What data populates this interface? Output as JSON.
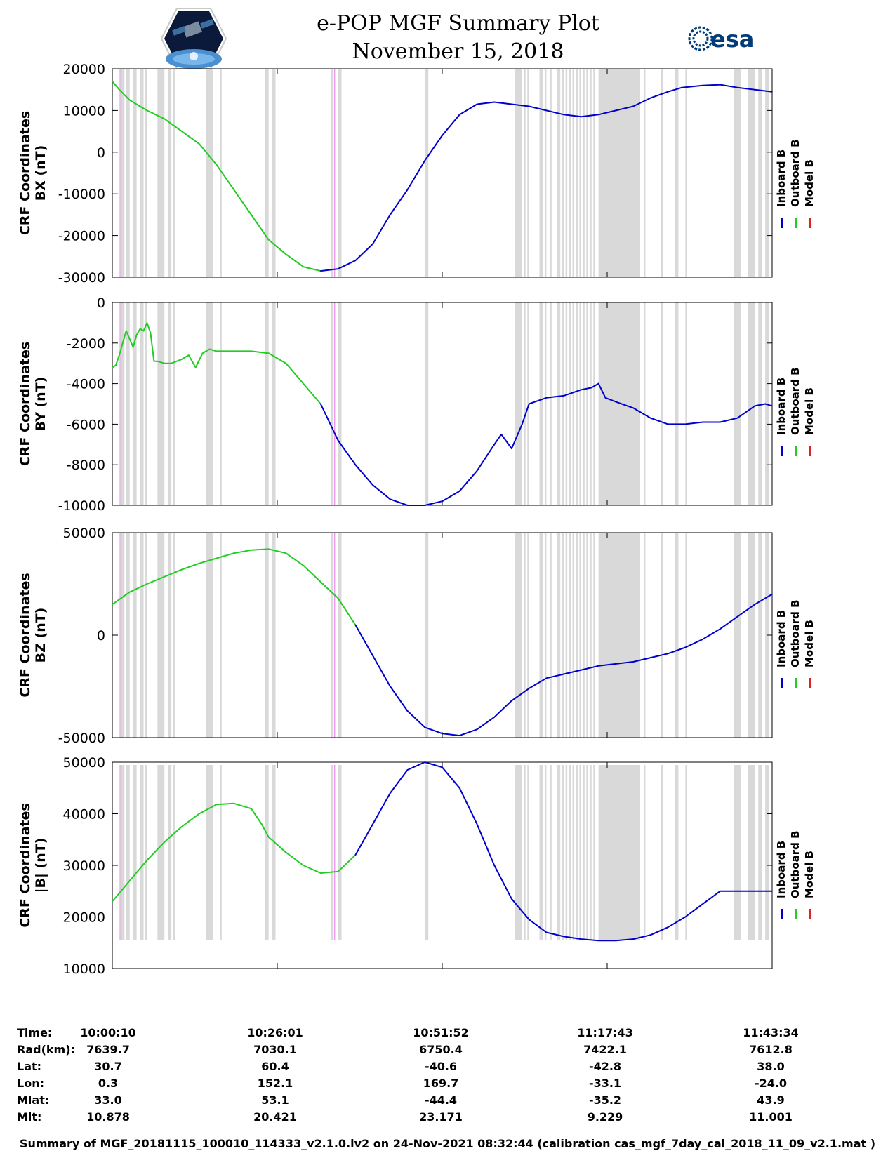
{
  "header": {
    "title": "e-POP MGF Summary Plot",
    "date": "November 15, 2018",
    "left_logo": "cassiope-mission-badge",
    "right_logo": "esa-logo",
    "right_logo_text": "esa"
  },
  "colors": {
    "inboard": "#0000cc",
    "outboard": "#22cc22",
    "model": "#dd2222",
    "gap_shading": "#d9d9d9",
    "marker": "#ee99ee"
  },
  "chart_data": [
    {
      "type": "line",
      "ylabel": [
        "CRF Coordinates",
        "BX (nT)"
      ],
      "ylim": [
        -30000,
        20000
      ],
      "yticks": [
        "20000",
        "10000",
        "0",
        "-10000",
        "-20000",
        "-30000"
      ],
      "legend": [
        "Inboard B",
        "Outboard B",
        "Model B"
      ],
      "legend_position": "right",
      "series": [
        {
          "name": "Outboard B",
          "x": [
            0,
            2,
            5,
            10,
            15,
            20,
            25,
            30,
            35,
            40,
            45,
            50,
            55,
            60
          ],
          "values": [
            17000,
            15000,
            12500,
            10000,
            8000,
            5000,
            2000,
            -3000,
            -9000,
            -15000,
            -21000,
            -24500,
            -27500,
            -28500
          ]
        },
        {
          "name": "Inboard B",
          "x": [
            60,
            65,
            70,
            75,
            80,
            85,
            90,
            95,
            100,
            105,
            110,
            115,
            120,
            125,
            130,
            135,
            140,
            145,
            150,
            155,
            160,
            164,
            170,
            175,
            180,
            185,
            190
          ],
          "values": [
            -28500,
            -28000,
            -26000,
            -22000,
            -15000,
            -9000,
            -2000,
            4000,
            9000,
            11500,
            12000,
            11500,
            11000,
            10000,
            9000,
            8500,
            9000,
            10000,
            11000,
            13000,
            14500,
            15500,
            16000,
            16200,
            15500,
            15000,
            14500
          ]
        }
      ]
    },
    {
      "type": "line",
      "ylabel": [
        "CRF Coordinates",
        "BY (nT)"
      ],
      "ylim": [
        -10000,
        0
      ],
      "yticks": [
        "0",
        "-2000",
        "-4000",
        "-6000",
        "-8000",
        "-10000"
      ],
      "legend": [
        "Inboard B",
        "Outboard B",
        "Model B"
      ],
      "legend_position": "right",
      "series": [
        {
          "name": "Outboard B",
          "x": [
            0,
            1,
            2,
            3,
            4,
            5,
            6,
            7,
            8,
            9,
            10,
            11,
            12,
            13,
            15,
            17,
            20,
            22,
            24,
            26,
            28,
            30,
            35,
            40,
            45,
            50,
            55,
            60
          ],
          "values": [
            -3200,
            -3100,
            -2600,
            -2000,
            -1400,
            -1800,
            -2200,
            -1600,
            -1300,
            -1400,
            -1000,
            -1500,
            -2900,
            -2900,
            -3000,
            -3000,
            -2800,
            -2600,
            -3200,
            -2500,
            -2300,
            -2400,
            -2400,
            -2400,
            -2500,
            -3000,
            -4000,
            -5000
          ]
        },
        {
          "name": "Inboard B",
          "x": [
            60,
            65,
            70,
            75,
            80,
            85,
            90,
            95,
            100,
            105,
            110,
            112,
            115,
            118,
            120,
            125,
            130,
            135,
            138,
            140,
            142,
            145,
            150,
            155,
            160,
            165,
            170,
            175,
            180,
            185,
            188,
            190
          ],
          "values": [
            -5000,
            -6800,
            -8000,
            -9000,
            -9700,
            -10000,
            -10000,
            -9800,
            -9300,
            -8300,
            -7000,
            -6500,
            -7200,
            -6000,
            -5000,
            -4700,
            -4600,
            -4300,
            -4200,
            -4000,
            -4700,
            -4900,
            -5200,
            -5700,
            -6000,
            -6000,
            -5900,
            -5900,
            -5700,
            -5100,
            -5000,
            -5100
          ]
        }
      ]
    },
    {
      "type": "line",
      "ylabel": [
        "CRF Coordinates",
        "BZ (nT)"
      ],
      "ylim": [
        -50000,
        50000
      ],
      "yticks": [
        "50000",
        "0",
        "-50000"
      ],
      "legend": [
        "Inboard B",
        "Outboard B",
        "Model B"
      ],
      "legend_position": "right",
      "series": [
        {
          "name": "Outboard B",
          "x": [
            0,
            5,
            10,
            15,
            20,
            25,
            30,
            35,
            40,
            45,
            50,
            55,
            60,
            65,
            70
          ],
          "values": [
            15000,
            21000,
            25000,
            28500,
            32000,
            35000,
            37500,
            40000,
            41500,
            42000,
            40000,
            34000,
            26000,
            18000,
            5000
          ]
        },
        {
          "name": "Inboard B",
          "x": [
            70,
            75,
            80,
            85,
            90,
            95,
            100,
            105,
            110,
            115,
            120,
            125,
            130,
            135,
            140,
            145,
            150,
            155,
            160,
            165,
            170,
            175,
            180,
            185,
            190
          ],
          "values": [
            5000,
            -10000,
            -25000,
            -37000,
            -45000,
            -48000,
            -49000,
            -46000,
            -40000,
            -32000,
            -26000,
            -21000,
            -19000,
            -17000,
            -15000,
            -14000,
            -13000,
            -11000,
            -9000,
            -6000,
            -2000,
            3000,
            9000,
            15000,
            20000
          ]
        }
      ]
    },
    {
      "type": "line",
      "ylabel": [
        "CRF Coordinates",
        "|B| (nT)"
      ],
      "ylim": [
        10000,
        50000
      ],
      "yticks": [
        "50000",
        "40000",
        "30000",
        "20000",
        "10000"
      ],
      "legend": [
        "Inboard B",
        "Outboard B",
        "Model B"
      ],
      "legend_position": "right",
      "series": [
        {
          "name": "Outboard B",
          "x": [
            0,
            5,
            10,
            15,
            20,
            25,
            30,
            35,
            40,
            43,
            45,
            50,
            55,
            60,
            65,
            70
          ],
          "values": [
            23000,
            27000,
            31000,
            34500,
            37500,
            40000,
            41800,
            42000,
            41000,
            38000,
            35500,
            32500,
            30000,
            28500,
            28800,
            32000
          ]
        },
        {
          "name": "Inboard B",
          "x": [
            70,
            75,
            80,
            85,
            90,
            95,
            100,
            105,
            110,
            115,
            120,
            125,
            130,
            135,
            140,
            145,
            150,
            155,
            160,
            165,
            170,
            175,
            180,
            185,
            190
          ],
          "values": [
            32000,
            38000,
            44000,
            48500,
            50000,
            49000,
            45000,
            38000,
            30000,
            23500,
            19500,
            17000,
            16200,
            15700,
            15400,
            15400,
            15700,
            16500,
            18000,
            20000,
            22500,
            25000,
            25000,
            25000,
            25000
          ]
        }
      ]
    }
  ],
  "gap_intervals": [
    [
      2.0,
      3.5
    ],
    [
      4,
      5
    ],
    [
      6,
      7
    ],
    [
      8,
      9
    ],
    [
      9.5,
      10
    ],
    [
      13,
      15
    ],
    [
      16,
      17
    ],
    [
      17.5,
      18
    ],
    [
      27,
      29
    ],
    [
      31,
      31.5
    ],
    [
      44,
      45
    ],
    [
      46,
      47
    ],
    [
      63,
      63.5
    ],
    [
      65,
      66
    ],
    [
      90,
      91
    ],
    [
      116,
      118
    ],
    [
      118.5,
      119
    ],
    [
      119.5,
      120
    ],
    [
      123,
      124
    ],
    [
      124.5,
      125
    ],
    [
      126,
      126.5
    ],
    [
      128,
      129
    ],
    [
      129.5,
      130
    ],
    [
      130.5,
      131
    ],
    [
      131.5,
      132
    ],
    [
      132.5,
      133
    ],
    [
      133.5,
      134
    ],
    [
      134.5,
      135
    ],
    [
      135.5,
      136
    ],
    [
      136.5,
      137
    ],
    [
      137.5,
      138
    ],
    [
      138.5,
      139
    ],
    [
      140,
      152
    ],
    [
      153,
      153.5
    ],
    [
      158,
      158.5
    ],
    [
      162,
      163
    ],
    [
      165,
      165.5
    ],
    [
      179,
      181
    ],
    [
      183,
      185
    ],
    [
      186,
      187
    ],
    [
      188,
      189
    ]
  ],
  "marker_lines": [
    2.5,
    64
  ],
  "info_table": {
    "labels": [
      "Time:",
      "Rad(km):",
      "Lat:",
      "Lon:",
      "Mlat:",
      "Mlt:"
    ],
    "columns": [
      [
        "10:00:10",
        "7639.7",
        "30.7",
        "0.3",
        "33.0",
        "10.878"
      ],
      [
        "10:26:01",
        "7030.1",
        "60.4",
        "152.1",
        "53.1",
        "20.421"
      ],
      [
        "10:51:52",
        "6750.4",
        "-40.6",
        "169.7",
        "-44.4",
        "23.171"
      ],
      [
        "11:17:43",
        "7422.1",
        "-42.8",
        "-33.1",
        "-35.2",
        "9.229"
      ],
      [
        "11:43:34",
        "7612.8",
        "38.0",
        "-24.0",
        "43.9",
        "11.001"
      ]
    ]
  },
  "footer": "Summary of MGF_20181115_100010_114333_v2.1.0.lv2 on 24-Nov-2021 08:32:44 (calibration cas_mgf_7day_cal_2018_11_09_v2.1.mat )"
}
